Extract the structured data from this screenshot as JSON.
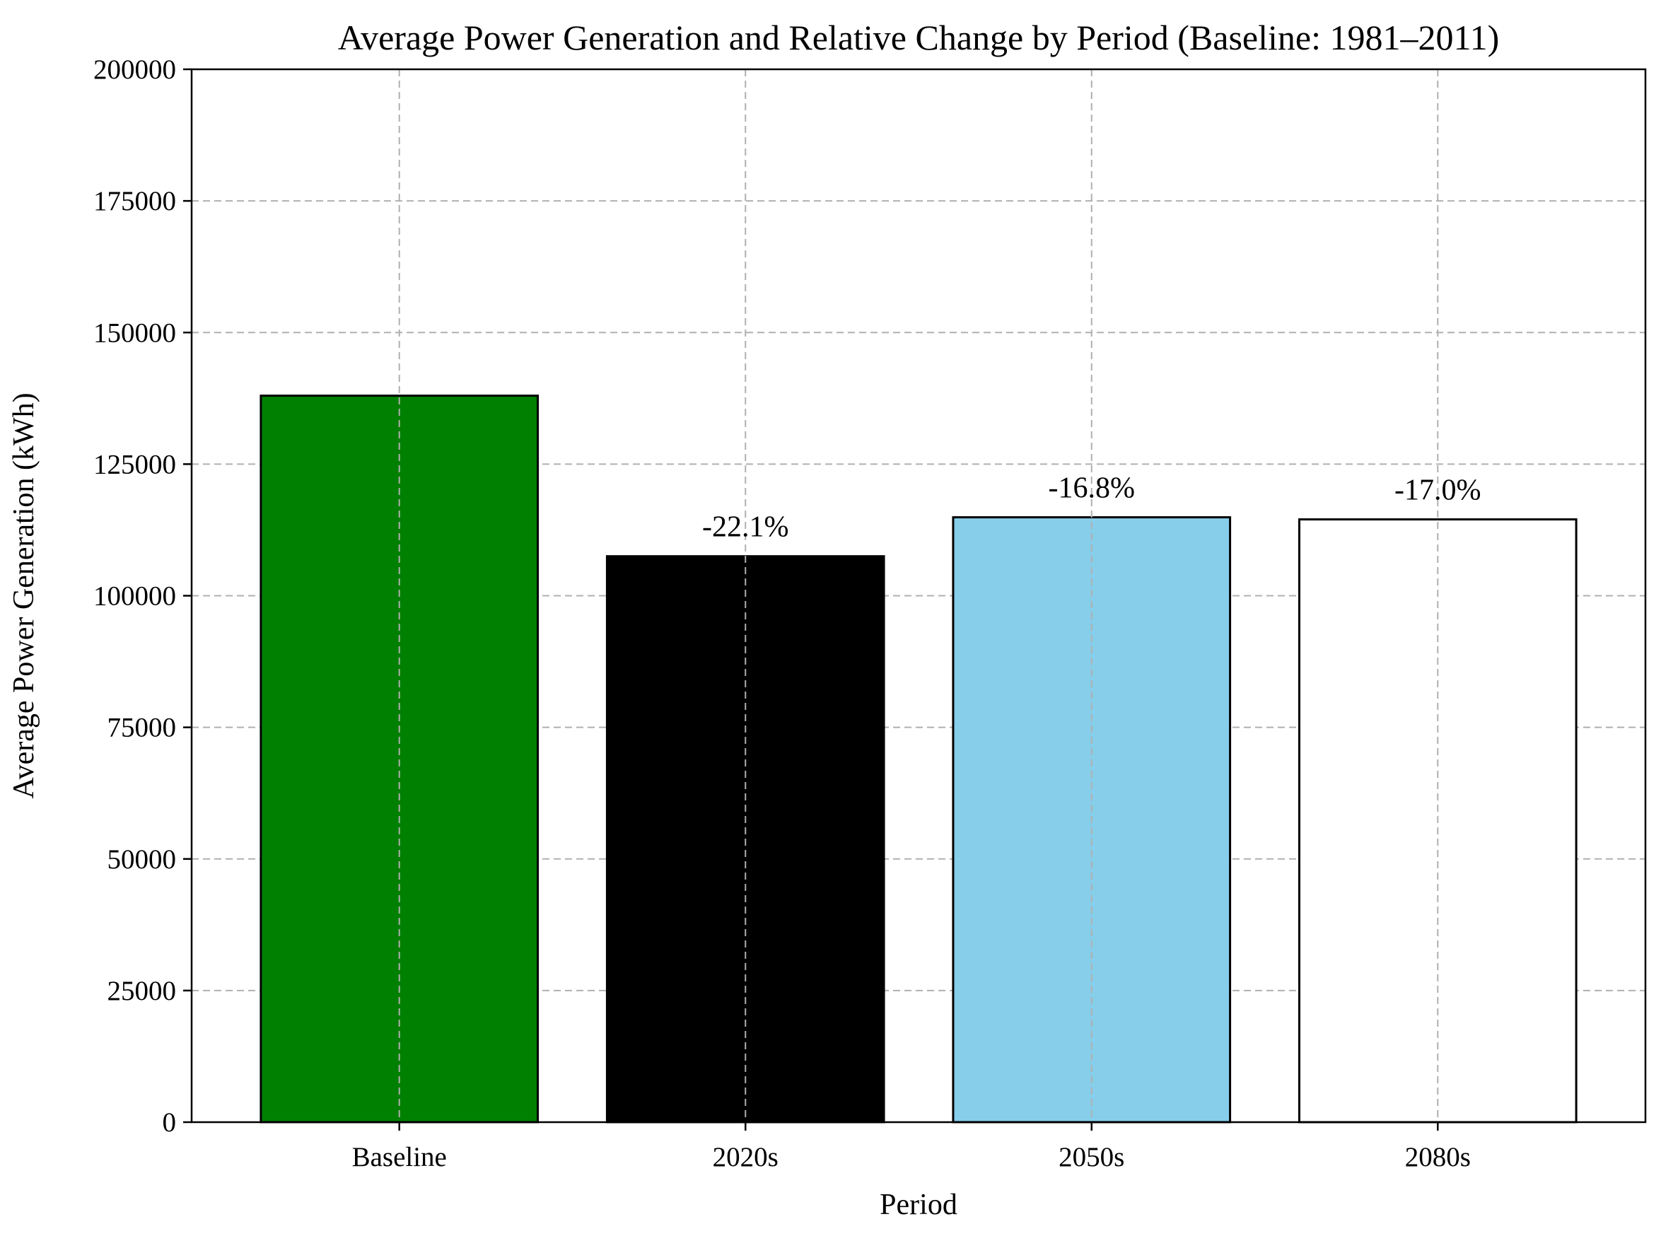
{
  "chart_data": {
    "type": "bar",
    "title": "Average Power Generation and Relative Change by Period (Baseline: 1981–2011)",
    "xlabel": "Period",
    "ylabel": "Average Power Generation (kWh)",
    "categories": [
      "Baseline",
      "2020s",
      "2050s",
      "2080s"
    ],
    "values": [
      138000,
      107500,
      114900,
      114500
    ],
    "bar_labels": [
      "",
      "-22.1%",
      "-16.8%",
      "-17.0%"
    ],
    "bar_colors": [
      "#008000",
      "#000000",
      "#87ceeb",
      "#ffffff"
    ],
    "bar_edge_color": "#000000",
    "ylim": [
      0,
      200000
    ],
    "yticks": [
      0,
      25000,
      50000,
      75000,
      100000,
      125000,
      150000,
      175000,
      200000
    ],
    "ytick_labels": [
      "0",
      "25000",
      "50000",
      "75000",
      "100000",
      "125000",
      "150000",
      "175000",
      "200000"
    ],
    "grid": true,
    "grid_color": "#b0b0b0"
  }
}
